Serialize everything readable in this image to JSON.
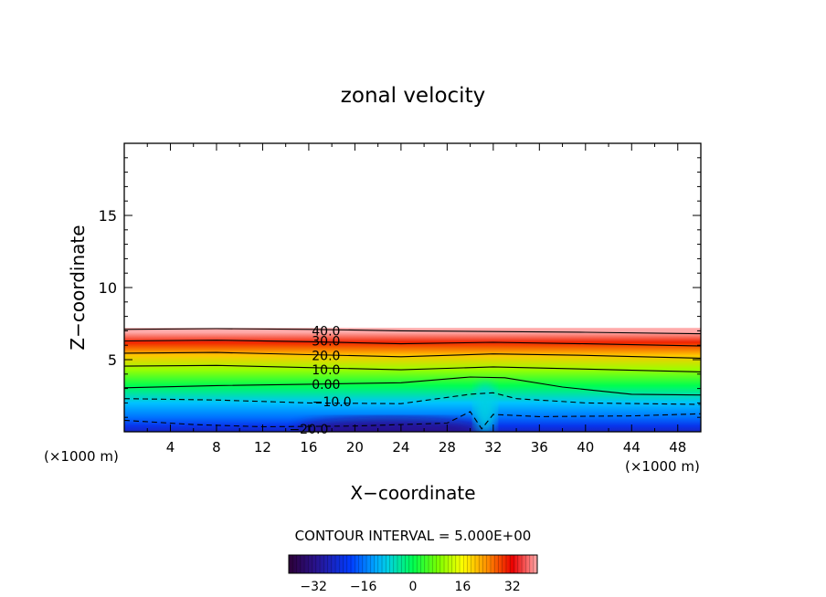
{
  "chart_data": {
    "type": "heatmap",
    "title": "zonal velocity",
    "xlabel": "X−coordinate",
    "ylabel": "Z−coordinate",
    "x_unit_left": "(×1000 m)",
    "x_unit_right": "(×1000 m)",
    "xlim": [
      0,
      50
    ],
    "ylim": [
      0,
      20
    ],
    "x_ticks": [
      4,
      8,
      12,
      16,
      20,
      24,
      28,
      32,
      36,
      40,
      44,
      48
    ],
    "x_tick_labels": [
      "4",
      "8",
      "12",
      "16",
      "20",
      "24",
      "28",
      "32",
      "36",
      "40",
      "44",
      "48"
    ],
    "y_ticks": [
      5,
      10,
      15
    ],
    "y_tick_labels": [
      "5",
      "10",
      "15"
    ],
    "field_top_z": 7.2,
    "contour_interval_text": "CONTOUR INTERVAL = 5.000E+00",
    "contour_labels": [
      {
        "text": "40.0",
        "x": 17.5,
        "z": 7.0
      },
      {
        "text": "30.0",
        "x": 17.5,
        "z": 6.3
      },
      {
        "text": "20.0",
        "x": 17.5,
        "z": 5.3
      },
      {
        "text": "10.0",
        "x": 17.5,
        "z": 4.3
      },
      {
        "text": "0.00",
        "x": 17.5,
        "z": 3.3
      },
      {
        "text": "−10.0",
        "x": 18.0,
        "z": 2.1
      },
      {
        "text": "−20.0",
        "x": 16.0,
        "z": 0.2
      }
    ],
    "contours": [
      {
        "level": 40,
        "dashed": false,
        "points": [
          [
            0,
            7.1
          ],
          [
            8,
            7.15
          ],
          [
            16,
            7.1
          ],
          [
            24,
            7.0
          ],
          [
            32,
            6.95
          ],
          [
            40,
            6.9
          ],
          [
            50,
            6.8
          ]
        ]
      },
      {
        "level": 30,
        "dashed": false,
        "points": [
          [
            0,
            6.3
          ],
          [
            8,
            6.35
          ],
          [
            16,
            6.25
          ],
          [
            24,
            6.1
          ],
          [
            32,
            6.2
          ],
          [
            40,
            6.1
          ],
          [
            50,
            5.95
          ]
        ]
      },
      {
        "level": 20,
        "dashed": false,
        "points": [
          [
            0,
            5.45
          ],
          [
            8,
            5.5
          ],
          [
            16,
            5.35
          ],
          [
            24,
            5.2
          ],
          [
            32,
            5.4
          ],
          [
            40,
            5.3
          ],
          [
            50,
            5.1
          ]
        ]
      },
      {
        "level": 10,
        "dashed": false,
        "points": [
          [
            0,
            4.55
          ],
          [
            8,
            4.6
          ],
          [
            16,
            4.45
          ],
          [
            24,
            4.3
          ],
          [
            32,
            4.5
          ],
          [
            40,
            4.35
          ],
          [
            50,
            4.15
          ]
        ]
      },
      {
        "level": 0,
        "dashed": false,
        "points": [
          [
            0,
            3.05
          ],
          [
            8,
            3.2
          ],
          [
            16,
            3.3
          ],
          [
            24,
            3.4
          ],
          [
            30,
            3.8
          ],
          [
            33,
            3.75
          ],
          [
            38,
            3.1
          ],
          [
            44,
            2.6
          ],
          [
            50,
            2.55
          ]
        ]
      },
      {
        "level": -10,
        "dashed": true,
        "points": [
          [
            0,
            2.3
          ],
          [
            8,
            2.2
          ],
          [
            16,
            2.0
          ],
          [
            24,
            1.95
          ],
          [
            30,
            2.6
          ],
          [
            32,
            2.7
          ],
          [
            34,
            2.3
          ],
          [
            40,
            2.0
          ],
          [
            50,
            1.9
          ]
        ]
      },
      {
        "level": -20,
        "dashed": true,
        "points": [
          [
            0,
            0.8
          ],
          [
            6,
            0.5
          ],
          [
            12,
            0.35
          ],
          [
            20,
            0.4
          ],
          [
            28,
            0.6
          ],
          [
            30,
            1.4
          ],
          [
            31,
            0.2
          ],
          [
            32,
            1.2
          ],
          [
            36,
            1.05
          ],
          [
            44,
            1.1
          ],
          [
            50,
            1.25
          ]
        ]
      }
    ],
    "colorbar": {
      "min": -40,
      "max": 40,
      "tick_values": [
        -32,
        -16,
        0,
        16,
        32
      ],
      "tick_labels": [
        "−32",
        "−16",
        "0",
        "16",
        "32"
      ]
    }
  }
}
